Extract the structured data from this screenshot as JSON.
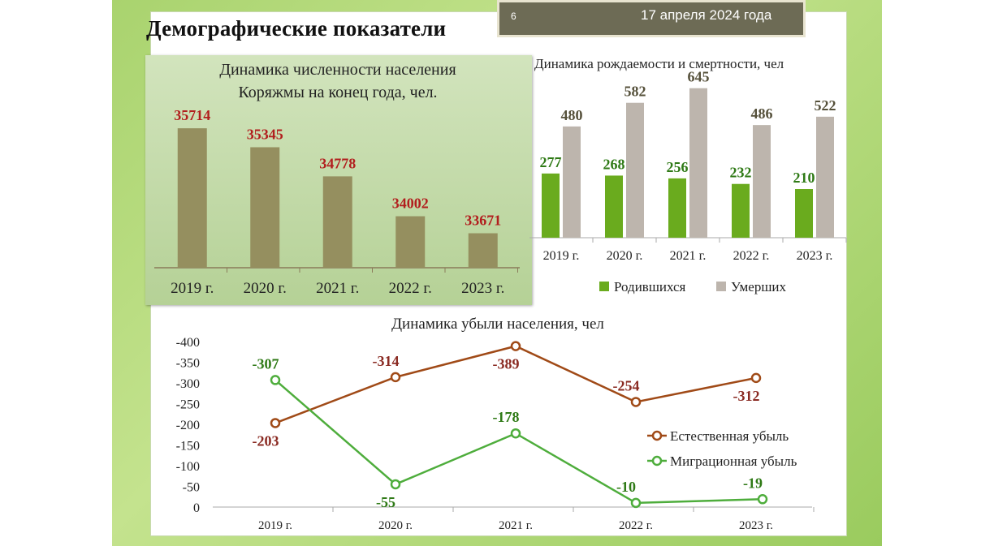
{
  "slide": {
    "number": "6",
    "date": "17 апреля 2024 года",
    "title": "Демографические показатели"
  },
  "colors": {
    "population_bar": "#958f5f",
    "births": "#6aab1e",
    "deaths": "#bdb5ad",
    "natural_loss": "#a04a17",
    "migration_loss": "#4ead3c",
    "value_label_red": "#b21e1e"
  },
  "chart_data": [
    {
      "type": "bar",
      "title": "Динамика численности населения Коряжмы на конец года, чел.",
      "categories": [
        "2019 г.",
        "2020 г.",
        "2021 г.",
        "2022 г.",
        "2023 г."
      ],
      "values": [
        35714,
        35345,
        34778,
        34002,
        33671
      ],
      "ylim": [
        33000,
        36000
      ],
      "grid": false
    },
    {
      "type": "bar",
      "title": "Динамика рождаемости и смертности, чел",
      "categories": [
        "2019 г.",
        "2020 г.",
        "2021 г.",
        "2022 г.",
        "2023 г."
      ],
      "series": [
        {
          "name": "Родившихся",
          "values": [
            277,
            268,
            256,
            232,
            210
          ]
        },
        {
          "name": "Умерших",
          "values": [
            480,
            582,
            645,
            486,
            522
          ]
        }
      ],
      "ylim": [
        0,
        700
      ],
      "legend": "bottom",
      "grid": false
    },
    {
      "type": "line",
      "title": "Динамика убыли населения, чел",
      "categories": [
        "2019 г.",
        "2020 г.",
        "2021 г.",
        "2022 г.",
        "2023 г."
      ],
      "series": [
        {
          "name": "Естественная убыль",
          "values": [
            -203,
            -314,
            -389,
            -254,
            -312
          ]
        },
        {
          "name": "Миграционная убыль",
          "values": [
            -307,
            -55,
            -178,
            -10,
            -19
          ]
        }
      ],
      "y_ticks": [
        "-400",
        "-350",
        "-300",
        "-250",
        "-200",
        "-150",
        "-100",
        "-50",
        "0"
      ],
      "ylim": [
        0,
        -400
      ],
      "legend": "right",
      "grid": false
    }
  ]
}
